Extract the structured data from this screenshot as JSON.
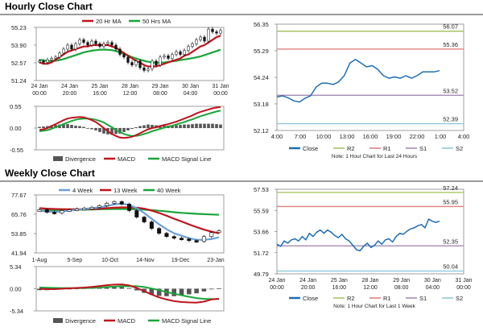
{
  "sections": {
    "hourly_title": "Hourly Close Chart",
    "weekly_title": "Weekly Close Chart"
  },
  "colors": {
    "ma_short": "#c0141c",
    "ma_long": "#1aa53a",
    "close": "#1f6eb5",
    "r2": "#a9c466",
    "r1": "#e08080",
    "s1": "#a78ab8",
    "s2": "#8fc9e0",
    "macd": "#c0141c",
    "signal": "#1aa53a",
    "divergence": "#555555",
    "week4": "#6aa0d8",
    "week13": "#c0141c",
    "week40": "#1aa53a"
  },
  "chart_data": [
    {
      "id": "hourly_price",
      "type": "line",
      "title": "Hourly Close Chart",
      "legend": [
        "20 Hr MA",
        "50 Hrs MA"
      ],
      "y_ticks": [
        "55.23",
        "53.90",
        "52.57",
        "51.24"
      ],
      "ylim": [
        51.24,
        55.23
      ],
      "x_ticks": [
        [
          "24 Jan",
          "00:00"
        ],
        [
          "24 Jan",
          "20:00"
        ],
        [
          "25 Jan",
          "16:00"
        ],
        [
          "28 Jan",
          "12:00"
        ],
        [
          "29 Jan",
          "08:00"
        ],
        [
          "30 Jan",
          "04:00"
        ],
        [
          "31 Jan",
          "00:00"
        ]
      ],
      "closes": [
        52.7,
        52.6,
        52.8,
        52.9,
        53.0,
        53.3,
        53.6,
        53.9,
        53.6,
        54.0,
        54.3,
        54.1,
        53.9,
        54.2,
        54.0,
        53.8,
        54.0,
        54.1,
        53.9,
        53.6,
        53.2,
        53.0,
        52.6,
        52.4,
        52.7,
        52.2,
        52.0,
        52.1,
        52.7,
        52.4,
        53.0,
        53.1,
        52.9,
        53.2,
        53.4,
        53.2,
        53.5,
        53.8,
        54.0,
        54.3,
        54.5,
        54.2,
        55.1,
        54.9,
        54.8,
        55.0
      ],
      "ma20": [
        52.6,
        52.5,
        52.5,
        52.6,
        52.8,
        53.0,
        53.2,
        53.4,
        53.5,
        53.6,
        53.7,
        53.8,
        53.8,
        53.9,
        53.9,
        53.9,
        53.9,
        53.9,
        53.8,
        53.7,
        53.5,
        53.3,
        53.1,
        52.9,
        52.7,
        52.6,
        52.4,
        52.3,
        52.3,
        52.3,
        52.4,
        52.5,
        52.6,
        52.7,
        52.8,
        52.9,
        53.1,
        53.2,
        53.4,
        53.6,
        53.8,
        53.9,
        54.1,
        54.3,
        54.5,
        54.6
      ],
      "ma50": [
        52.8,
        52.75,
        52.7,
        52.7,
        52.72,
        52.78,
        52.85,
        52.95,
        53.05,
        53.15,
        53.25,
        53.35,
        53.42,
        53.48,
        53.52,
        53.55,
        53.56,
        53.55,
        53.52,
        53.45,
        53.35,
        53.25,
        53.12,
        53.0,
        52.9,
        52.8,
        52.72,
        52.65,
        52.6,
        52.58,
        52.58,
        52.6,
        52.63,
        52.68,
        52.72,
        52.78,
        52.82,
        52.87,
        52.92,
        52.98,
        53.05,
        53.15,
        53.25,
        53.35,
        53.45,
        53.55
      ]
    },
    {
      "id": "hourly_macd",
      "type": "bar",
      "legend": [
        "Divergence",
        "MACD",
        "MACD Signal Line"
      ],
      "y_ticks": [
        "0.55",
        "0.00",
        "-0.55"
      ],
      "ylim": [
        -0.55,
        0.55
      ],
      "macd": [
        -0.05,
        -0.03,
        0.0,
        0.05,
        0.1,
        0.15,
        0.2,
        0.24,
        0.26,
        0.27,
        0.28,
        0.27,
        0.24,
        0.2,
        0.15,
        0.08,
        0.0,
        -0.08,
        -0.15,
        -0.2,
        -0.24,
        -0.25,
        -0.24,
        -0.22,
        -0.18,
        -0.13,
        -0.08,
        -0.03,
        0.0,
        0.02,
        0.05,
        0.08,
        0.1,
        0.13,
        0.16,
        0.2,
        0.24,
        0.28,
        0.32,
        0.37,
        0.41,
        0.44,
        0.47,
        0.5,
        0.52,
        0.53
      ],
      "signal": [
        -0.08,
        -0.07,
        -0.05,
        -0.02,
        0.02,
        0.06,
        0.1,
        0.14,
        0.18,
        0.21,
        0.23,
        0.24,
        0.24,
        0.23,
        0.21,
        0.18,
        0.14,
        0.08,
        0.02,
        -0.05,
        -0.1,
        -0.15,
        -0.18,
        -0.2,
        -0.2,
        -0.18,
        -0.15,
        -0.12,
        -0.08,
        -0.05,
        -0.02,
        0.01,
        0.04,
        0.06,
        0.09,
        0.12,
        0.15,
        0.19,
        0.22,
        0.26,
        0.3,
        0.33,
        0.36,
        0.39,
        0.42,
        0.44
      ],
      "divergence": [
        0.03,
        0.04,
        0.05,
        0.07,
        0.08,
        0.09,
        0.1,
        0.1,
        0.08,
        0.06,
        0.05,
        0.03,
        0.0,
        -0.03,
        -0.06,
        -0.1,
        -0.14,
        -0.16,
        -0.17,
        -0.15,
        -0.14,
        -0.1,
        -0.06,
        -0.02,
        0.02,
        0.05,
        0.07,
        0.09,
        0.08,
        0.07,
        0.07,
        0.07,
        0.06,
        0.07,
        0.07,
        0.08,
        0.09,
        0.09,
        0.1,
        0.11,
        0.11,
        0.11,
        0.11,
        0.11,
        0.1,
        0.09
      ]
    },
    {
      "id": "hourly_close_levels",
      "type": "line",
      "y_ticks": [
        "56.35",
        "55.29",
        "54.24",
        "53.18",
        "52.12"
      ],
      "ylim": [
        52.12,
        56.35
      ],
      "x_ticks": [
        "4:00",
        "7:00",
        "10:00",
        "13:00",
        "16:00",
        "19:00",
        "22:00",
        "1:00",
        "4:00"
      ],
      "levels": [
        {
          "name": "R2",
          "value": 56.07,
          "label": "56.07"
        },
        {
          "name": "R1",
          "value": 55.36,
          "label": "55.36"
        },
        {
          "name": "S1",
          "value": 53.52,
          "label": "53.52"
        },
        {
          "name": "S2",
          "value": 52.39,
          "label": "52.39"
        }
      ],
      "close": [
        53.45,
        53.5,
        53.42,
        53.3,
        53.25,
        53.4,
        53.5,
        53.85,
        54.0,
        54.0,
        53.95,
        54.05,
        54.3,
        54.8,
        54.95,
        54.8,
        54.65,
        54.7,
        54.55,
        54.3,
        54.2,
        54.25,
        54.2,
        54.3,
        54.2,
        54.3,
        54.45,
        54.45,
        54.45,
        54.5
      ],
      "legend": [
        "Close",
        "R2",
        "R1",
        "S1",
        "S2"
      ],
      "note": "Note: 1 Hour Chart for Last 24 Hours"
    },
    {
      "id": "weekly_price",
      "type": "line",
      "title": "Weekly Close Chart",
      "legend": [
        "4 Week",
        "13 Week",
        "40 Week"
      ],
      "y_ticks": [
        "77.67",
        "65.76",
        "53.85",
        "41.94"
      ],
      "ylim": [
        41.94,
        77.67
      ],
      "x_ticks": [
        "1-Aug",
        "5-Sep",
        "10-Oct",
        "14-Nov",
        "19-Dec",
        "23-Jan"
      ],
      "closes": [
        68.5,
        67.0,
        66.5,
        68.0,
        68.5,
        69.0,
        69.5,
        70.0,
        71.0,
        72.5,
        73.5,
        72.0,
        68.0,
        64.0,
        61.0,
        57.0,
        54.0,
        52.0,
        51.0,
        50.5,
        49.5,
        49.0,
        52.0,
        54.5,
        55.5
      ],
      "w4": [
        68.0,
        67.5,
        67.2,
        67.5,
        68.0,
        68.5,
        69.0,
        69.5,
        70.0,
        70.8,
        71.8,
        72.3,
        71.5,
        69.5,
        66.5,
        63.0,
        59.5,
        56.5,
        54.0,
        52.5,
        51.0,
        50.0,
        50.0,
        50.5,
        51.5
      ],
      "w13": [
        69.5,
        69.2,
        69.0,
        68.9,
        68.8,
        68.8,
        68.9,
        69.0,
        69.2,
        69.5,
        69.8,
        70.0,
        70.0,
        69.8,
        69.2,
        68.0,
        66.5,
        64.8,
        63.0,
        61.3,
        59.5,
        57.8,
        56.3,
        55.0,
        54.0
      ],
      "w40": [
        68.0,
        68.1,
        68.2,
        68.3,
        68.4,
        68.5,
        68.6,
        68.7,
        68.8,
        68.9,
        69.0,
        69.0,
        68.9,
        68.8,
        68.6,
        68.3,
        67.9,
        67.5,
        67.0,
        66.6,
        66.3,
        66.0,
        65.8,
        65.6,
        65.4
      ],
      "extra_boxes": [
        [
          3,
          72.0,
          65.0
        ],
        [
          11,
          70.5,
          66.0
        ]
      ]
    },
    {
      "id": "weekly_macd",
      "type": "bar",
      "legend": [
        "Divergence",
        "MACD",
        "MACD Signal Line"
      ],
      "y_ticks": [
        "5.34",
        "0.00",
        "-5.34"
      ],
      "ylim": [
        -5.34,
        5.34
      ],
      "macd": [
        -0.05,
        -0.1,
        -0.1,
        0.0,
        0.1,
        0.2,
        0.3,
        0.45,
        0.65,
        0.85,
        1.0,
        1.05,
        0.8,
        0.2,
        -0.6,
        -1.4,
        -2.1,
        -2.6,
        -3.0,
        -3.2,
        -3.3,
        -3.35,
        -3.1,
        -2.6,
        -2.4
      ],
      "signal": [
        0.3,
        0.25,
        0.2,
        0.15,
        0.15,
        0.16,
        0.18,
        0.22,
        0.3,
        0.4,
        0.5,
        0.6,
        0.65,
        0.6,
        0.4,
        0.05,
        -0.35,
        -0.8,
        -1.2,
        -1.6,
        -1.95,
        -2.25,
        -2.45,
        -2.5,
        -2.5
      ],
      "divergence": [
        -0.35,
        -0.35,
        -0.3,
        -0.15,
        -0.05,
        0.04,
        0.12,
        0.23,
        0.35,
        0.45,
        0.5,
        0.45,
        0.15,
        -0.4,
        -1.0,
        -1.45,
        -1.75,
        -1.8,
        -1.8,
        -1.6,
        -1.35,
        -1.1,
        -0.65,
        -0.1,
        0.1
      ]
    },
    {
      "id": "weekly_close_levels",
      "type": "line",
      "y_ticks": [
        "57.53",
        "55.59",
        "53.66",
        "51.72",
        "49.79"
      ],
      "ylim": [
        49.79,
        57.53
      ],
      "x_ticks": [
        [
          "24 Jan",
          "00:00"
        ],
        [
          "24 Jan",
          "20:00"
        ],
        [
          "25 Jan",
          "16:00"
        ],
        [
          "28 Jan",
          "12:00"
        ],
        [
          "29 Jan",
          "08:00"
        ],
        [
          "30 Jan",
          "04:00"
        ],
        [
          "31 Jan",
          "00:00"
        ]
      ],
      "levels": [
        {
          "name": "R2",
          "value": 57.24,
          "label": "57.24"
        },
        {
          "name": "R1",
          "value": 55.95,
          "label": "55.95"
        },
        {
          "name": "S1",
          "value": 52.35,
          "label": "52.35"
        },
        {
          "name": "S2",
          "value": 50.04,
          "label": "50.04"
        }
      ],
      "close": [
        52.5,
        52.3,
        52.8,
        52.6,
        52.9,
        53.0,
        52.8,
        53.2,
        52.9,
        53.5,
        53.2,
        53.6,
        53.8,
        53.5,
        53.8,
        53.6,
        53.3,
        53.1,
        53.4,
        53.0,
        52.8,
        52.4,
        52.0,
        51.9,
        52.3,
        52.6,
        52.2,
        52.4,
        52.8,
        52.5,
        52.9,
        53.0,
        52.7,
        53.2,
        53.5,
        53.4,
        53.7,
        53.9,
        54.0,
        54.2,
        54.3,
        54.0,
        54.8,
        54.6,
        54.5,
        54.6
      ],
      "legend": [
        "Close",
        "R2",
        "R1",
        "S1",
        "S2"
      ],
      "note": "Note: 1 Hour Chart for Last 1 Week"
    }
  ]
}
